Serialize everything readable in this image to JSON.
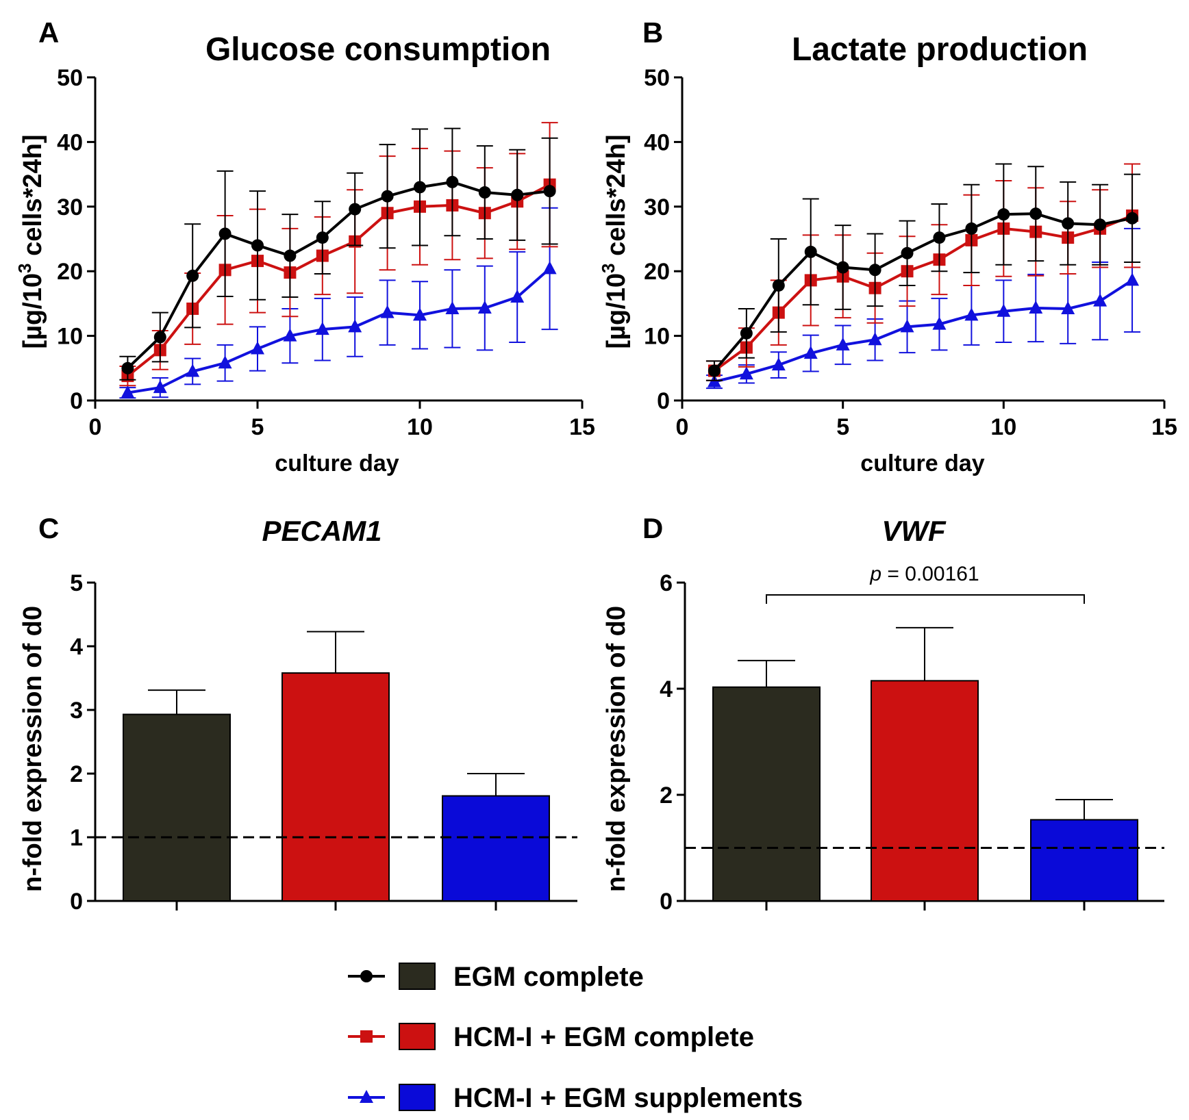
{
  "legend": {
    "items": [
      {
        "label": "EGM complete",
        "line_color": "#000000",
        "bar_color": "#2b2b1f",
        "marker": "circle"
      },
      {
        "label": "HCM-I + EGM complete",
        "line_color": "#cc1111",
        "bar_color": "#cc1111",
        "marker": "square"
      },
      {
        "label": "HCM-I + EGM supplements",
        "line_color": "#1111dd",
        "bar_color": "#0a0ad8",
        "marker": "triangle"
      }
    ]
  },
  "chart_data": [
    {
      "panel": "A",
      "type": "line",
      "title": "Glucose consumption",
      "xlabel": "culture day",
      "ylabel_prefix": "[µg/10",
      "ylabel_sup": "3",
      "ylabel_suffix": " cells*24h]",
      "xlim": [
        0,
        15
      ],
      "ylim": [
        0,
        50
      ],
      "xticks": [
        "0",
        "5",
        "10",
        "15"
      ],
      "yticks": [
        "0",
        "10",
        "20",
        "30",
        "40",
        "50"
      ],
      "x": [
        1,
        2,
        3,
        4,
        5,
        6,
        7,
        8,
        9,
        10,
        11,
        12,
        13,
        14
      ],
      "series": [
        {
          "name": "EGM complete",
          "values": [
            5.0,
            9.8,
            19.3,
            25.8,
            24.0,
            22.4,
            25.2,
            29.6,
            31.6,
            33.0,
            33.8,
            32.2,
            31.8,
            32.4
          ],
          "errors": [
            1.8,
            3.8,
            8.0,
            9.7,
            8.4,
            6.4,
            5.6,
            5.6,
            8.0,
            9.0,
            8.3,
            7.2,
            7.0,
            8.2
          ]
        },
        {
          "name": "HCM-I + EGM complete",
          "values": [
            3.8,
            7.8,
            14.2,
            20.2,
            21.6,
            19.8,
            22.4,
            24.6,
            29.0,
            30.0,
            30.2,
            29.0,
            30.8,
            33.4
          ],
          "errors": [
            1.5,
            3.0,
            5.5,
            8.4,
            8.0,
            6.8,
            6.0,
            8.0,
            8.8,
            9.0,
            8.4,
            7.0,
            7.4,
            9.6
          ]
        },
        {
          "name": "HCM-I + EGM supplements",
          "values": [
            1.2,
            2.0,
            4.5,
            5.8,
            8.0,
            10.0,
            11.0,
            11.4,
            13.6,
            13.2,
            14.2,
            14.3,
            16.0,
            20.4
          ],
          "errors": [
            0.8,
            1.5,
            2.0,
            2.8,
            3.4,
            4.2,
            4.8,
            4.6,
            5.0,
            5.2,
            6.0,
            6.5,
            7.0,
            9.4
          ]
        }
      ]
    },
    {
      "panel": "B",
      "type": "line",
      "title": "Lactate production",
      "xlabel": "culture day",
      "ylabel_prefix": "[µg/10",
      "ylabel_sup": "3",
      "ylabel_suffix": " cells*24h]",
      "xlim": [
        0,
        15
      ],
      "ylim": [
        0,
        50
      ],
      "xticks": [
        "0",
        "5",
        "10",
        "15"
      ],
      "yticks": [
        "0",
        "10",
        "20",
        "30",
        "40",
        "50"
      ],
      "x": [
        1,
        2,
        3,
        4,
        5,
        6,
        7,
        8,
        9,
        10,
        11,
        12,
        13,
        14
      ],
      "series": [
        {
          "name": "EGM complete",
          "values": [
            4.6,
            10.4,
            17.8,
            23.0,
            20.6,
            20.2,
            22.8,
            25.2,
            26.6,
            28.8,
            28.9,
            27.4,
            27.2,
            28.2
          ],
          "errors": [
            1.5,
            3.8,
            7.2,
            8.2,
            6.5,
            5.6,
            5.0,
            5.2,
            6.8,
            7.8,
            7.3,
            6.4,
            6.2,
            6.8
          ]
        },
        {
          "name": "HCM-I + EGM complete",
          "values": [
            4.6,
            8.2,
            13.6,
            18.6,
            19.2,
            17.4,
            20.0,
            21.8,
            24.8,
            26.6,
            26.1,
            25.2,
            26.6,
            28.6
          ],
          "errors": [
            1.5,
            3.0,
            5.0,
            7.0,
            6.4,
            5.4,
            5.4,
            5.4,
            7.0,
            7.4,
            6.8,
            5.6,
            6.0,
            8.0
          ]
        },
        {
          "name": "HCM-I + EGM supplements",
          "values": [
            2.9,
            4.1,
            5.5,
            7.3,
            8.6,
            9.4,
            11.4,
            11.8,
            13.2,
            13.8,
            14.3,
            14.2,
            15.4,
            18.6
          ],
          "errors": [
            1.0,
            1.4,
            2.0,
            2.8,
            3.0,
            3.2,
            4.0,
            4.0,
            4.6,
            4.8,
            5.2,
            5.4,
            6.0,
            8.0
          ]
        }
      ]
    },
    {
      "panel": "C",
      "type": "bar",
      "title": "PECAM1",
      "ylabel": "n-fold expression of d0",
      "ylim": [
        0,
        5
      ],
      "yticks": [
        "0",
        "1",
        "2",
        "3",
        "4",
        "5"
      ],
      "reference_line": 1,
      "categories": [
        "EGM complete",
        "HCM-I + EGM complete",
        "HCM-I + EGM supplements"
      ],
      "values": [
        2.93,
        3.58,
        1.65
      ],
      "errors": [
        0.38,
        0.65,
        0.35
      ]
    },
    {
      "panel": "D",
      "type": "bar",
      "title": "VWF",
      "ylabel": "n-fold expression of d0",
      "ylim": [
        0,
        6
      ],
      "yticks": [
        "0",
        "2",
        "4",
        "6"
      ],
      "reference_line": 1,
      "categories": [
        "EGM complete",
        "HCM-I + EGM complete",
        "HCM-I + EGM supplements"
      ],
      "values": [
        4.03,
        4.15,
        1.53
      ],
      "errors": [
        0.5,
        1.0,
        0.38
      ],
      "significance": {
        "from": 0,
        "to": 2,
        "p_label": "p",
        "p_value": " = 0.00161"
      }
    }
  ]
}
